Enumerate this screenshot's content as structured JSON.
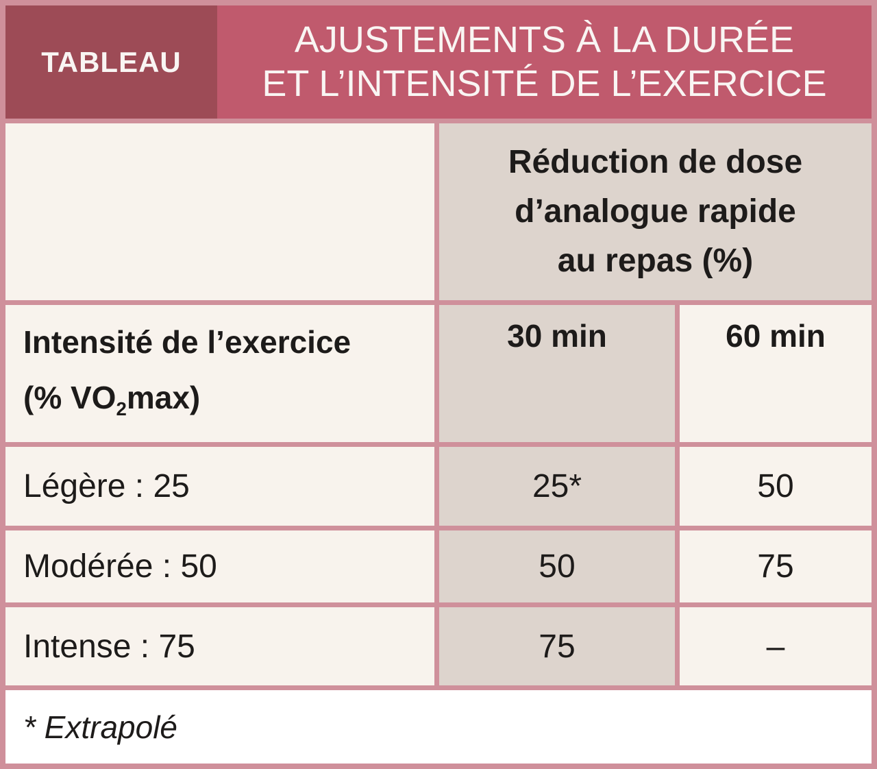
{
  "header": {
    "badge": "TABLEAU",
    "title_lines": [
      "AJUSTEMENTS À LA DURÉE",
      "ET L’INTENSITÉ DE L’EXERCICE"
    ]
  },
  "table": {
    "reduction_header_lines": [
      "Réduction de dose",
      "d’analogue rapide",
      "au repas (%)"
    ],
    "intensity_header": {
      "line1": "Intensité de l’exercice",
      "line2_pre": "(% VO",
      "line2_sub": "2",
      "line2_post": "max)"
    },
    "duration_columns": [
      "30 min",
      "60 min"
    ],
    "rows": [
      {
        "label": "Légère : 25",
        "min30": "25*",
        "min60": "50"
      },
      {
        "label": "Modérée : 50",
        "min30": "50",
        "min60": "75"
      },
      {
        "label": "Intense : 75",
        "min30": "75",
        "min60": "–"
      }
    ],
    "footnote": "* Extrapolé"
  },
  "colors": {
    "badge_bg": "#9d4b56",
    "title_bg": "#c05a6d",
    "border": "#cf909b",
    "cream_cell": "#f8f3ed",
    "taupe_cell": "#ddd4cd",
    "footnote_bg": "#ffffff",
    "text": "#1d1b1a",
    "header_text": "#f9f5f3"
  }
}
